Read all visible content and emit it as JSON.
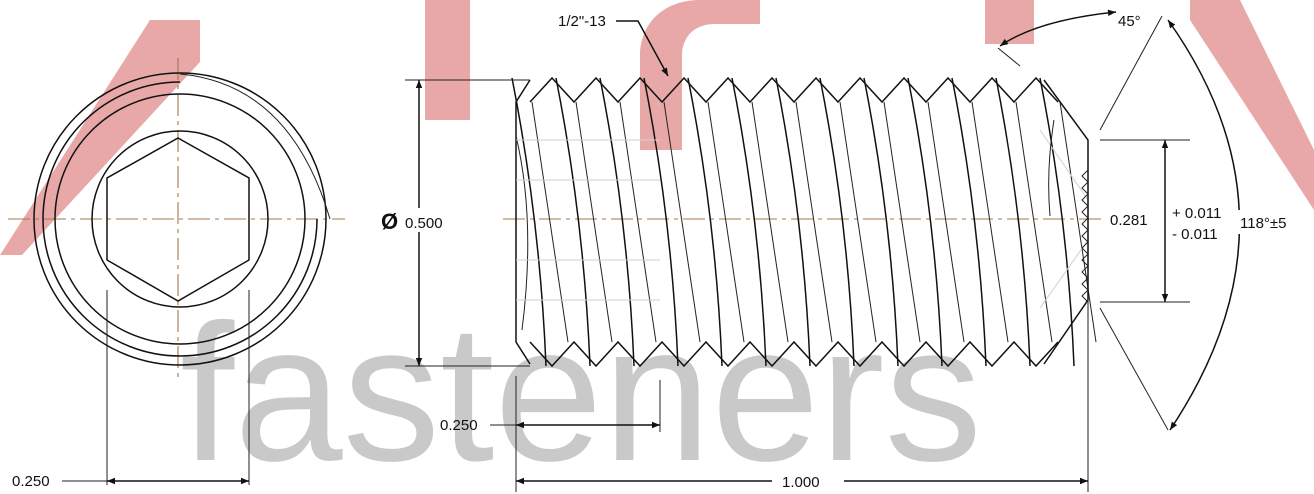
{
  "drawing": {
    "watermark": {
      "brand_word": "ASPEN",
      "tagline": "fasteners",
      "logo_color": "#e8a8a8",
      "tagline_color": "#c9c9c9"
    },
    "colors": {
      "line": "#111111",
      "centerline": "#a0784a"
    },
    "end_view": {
      "hex_socket_width": "0.250"
    },
    "side_view": {
      "thread_callout": "1/2\"-13",
      "major_diameter": "0.500",
      "diameter_symbol": "Ø",
      "thread_pitch_ref": "0.250",
      "overall_length": "1.000",
      "chamfer_angle": "45°",
      "cup_point_angle": "118°±5",
      "cup_point_diameter": "0.281",
      "tolerance_plus": "+ 0.011",
      "tolerance_minus": "- 0.011"
    },
    "icons": [
      "cup-point-icon",
      "hex-socket-icon"
    ]
  }
}
